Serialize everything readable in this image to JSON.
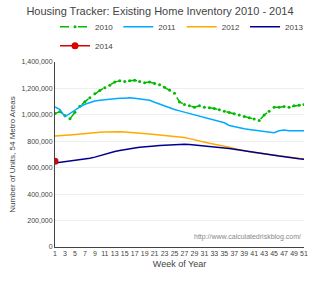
{
  "chart_data": {
    "type": "line",
    "title": "Housing Tracker: Existing Home Inventory 2010 - 2014",
    "xlabel": "Week of Year",
    "ylabel": "Number of Units, 54 Metro Areas",
    "annotations": [
      "http://www.calculatedriskblog.com/"
    ],
    "x": [
      1,
      2,
      3,
      4,
      5,
      6,
      7,
      8,
      9,
      10,
      11,
      12,
      13,
      14,
      15,
      16,
      17,
      18,
      19,
      20,
      21,
      22,
      23,
      24,
      25,
      26,
      27,
      28,
      29,
      30,
      31,
      32,
      33,
      34,
      35,
      36,
      37,
      38,
      39,
      40,
      41,
      42,
      43,
      44,
      45,
      46,
      47,
      48,
      49,
      50,
      51
    ],
    "series": [
      {
        "name": "2010",
        "color": "#00bb00",
        "line_style": "dashed",
        "marker": "circle",
        "values": [
          1010000,
          1025000,
          995000,
          970000,
          1020000,
          1065000,
          1100000,
          1130000,
          1160000,
          1185000,
          1205000,
          1225000,
          1248000,
          1258000,
          1252000,
          1258000,
          1262000,
          1253000,
          1243000,
          1248000,
          1238000,
          1228000,
          1208000,
          1188000,
          1163000,
          1098000,
          1078000,
          1068000,
          1058000,
          1068000,
          1058000,
          1053000,
          1048000,
          1038000,
          1028000,
          1018000,
          1008000,
          998000,
          988000,
          978000,
          968000,
          958000,
          998000,
          1028000,
          1058000,
          1058000,
          1063000,
          1058000,
          1068000,
          1073000,
          1078000
        ]
      },
      {
        "name": "2011",
        "color": "#00aaff",
        "line_style": "solid",
        "values": [
          1060000,
          1040000,
          985000,
          1010000,
          1040000,
          1060000,
          1080000,
          1095000,
          1105000,
          1110000,
          1115000,
          1120000,
          1125000,
          1125000,
          1125000,
          1130000,
          1125000,
          1120000,
          1115000,
          1110000,
          1095000,
          1080000,
          1070000,
          1055000,
          1040000,
          1030000,
          1020000,
          1010000,
          1000000,
          990000,
          985000,
          975000,
          965000,
          955000,
          940000,
          920000,
          910000,
          900000,
          895000,
          890000,
          885000,
          880000,
          875000,
          870000,
          865000,
          880000,
          885000,
          880000,
          880000,
          880000,
          880000
        ]
      },
      {
        "name": "2012",
        "color": "#ffaa00",
        "line_style": "solid",
        "values": [
          840000,
          840000,
          845000,
          848000,
          852000,
          855000,
          858000,
          862000,
          865000,
          868000,
          870000,
          872000,
          875000,
          873000,
          870000,
          868000,
          865000,
          862000,
          860000,
          855000,
          852000,
          848000,
          845000,
          840000,
          838000,
          832000,
          828000,
          820000,
          810000,
          800000,
          792000,
          785000,
          778000,
          772000,
          765000,
          755000,
          745000,
          735000,
          725000,
          720000,
          715000,
          710000,
          705000,
          700000,
          695000,
          690000,
          685000,
          680000,
          675000,
          670000,
          665000
        ]
      },
      {
        "name": "2013",
        "color": "#000090",
        "line_style": "solid",
        "values": [
          635000,
          640000,
          645000,
          648000,
          652000,
          658000,
          665000,
          672000,
          680000,
          692000,
          700000,
          712000,
          722000,
          730000,
          738000,
          745000,
          750000,
          755000,
          760000,
          762000,
          765000,
          768000,
          770000,
          772000,
          775000,
          778000,
          778000,
          775000,
          772000,
          768000,
          765000,
          762000,
          758000,
          755000,
          750000,
          745000,
          740000,
          735000,
          730000,
          725000,
          718000,
          712000,
          705000,
          700000,
          695000,
          688000,
          682000,
          675000,
          672000,
          668000,
          665000
        ]
      },
      {
        "name": "2014",
        "color": "#dd0000",
        "line_style": "solid",
        "marker": "circle",
        "values": [
          648000,
          null,
          null,
          null,
          null,
          null,
          null,
          null,
          null,
          null,
          null,
          null,
          null,
          null,
          null,
          null,
          null,
          null,
          null,
          null,
          null,
          null,
          null,
          null,
          null,
          null,
          null,
          null,
          null,
          null,
          null,
          null,
          null,
          null,
          null,
          null,
          null,
          null,
          null,
          null,
          null,
          null,
          null,
          null,
          null,
          null,
          null,
          null,
          null,
          null,
          null
        ]
      }
    ],
    "xlim": [
      1,
      51
    ],
    "xticks": [
      1,
      3,
      5,
      7,
      9,
      11,
      13,
      15,
      17,
      19,
      21,
      23,
      25,
      27,
      29,
      31,
      33,
      35,
      37,
      39,
      41,
      43,
      45,
      47,
      49,
      51
    ],
    "ylim": [
      0,
      1400000
    ],
    "yticks": [
      0,
      {
        "value": 200000,
        "label": "200,000"
      },
      {
        "value": 400000,
        "label": "400,000"
      },
      {
        "value": 600000,
        "label": "600,000"
      },
      {
        "value": 800000,
        "label": "800,000"
      },
      {
        "value": 1000000,
        "label": "1,000,000"
      },
      {
        "value": 1200000,
        "label": "1,200,000"
      },
      {
        "value": 1400000,
        "label": "1,400,000"
      }
    ],
    "grid": "y",
    "legend": "upper left"
  }
}
